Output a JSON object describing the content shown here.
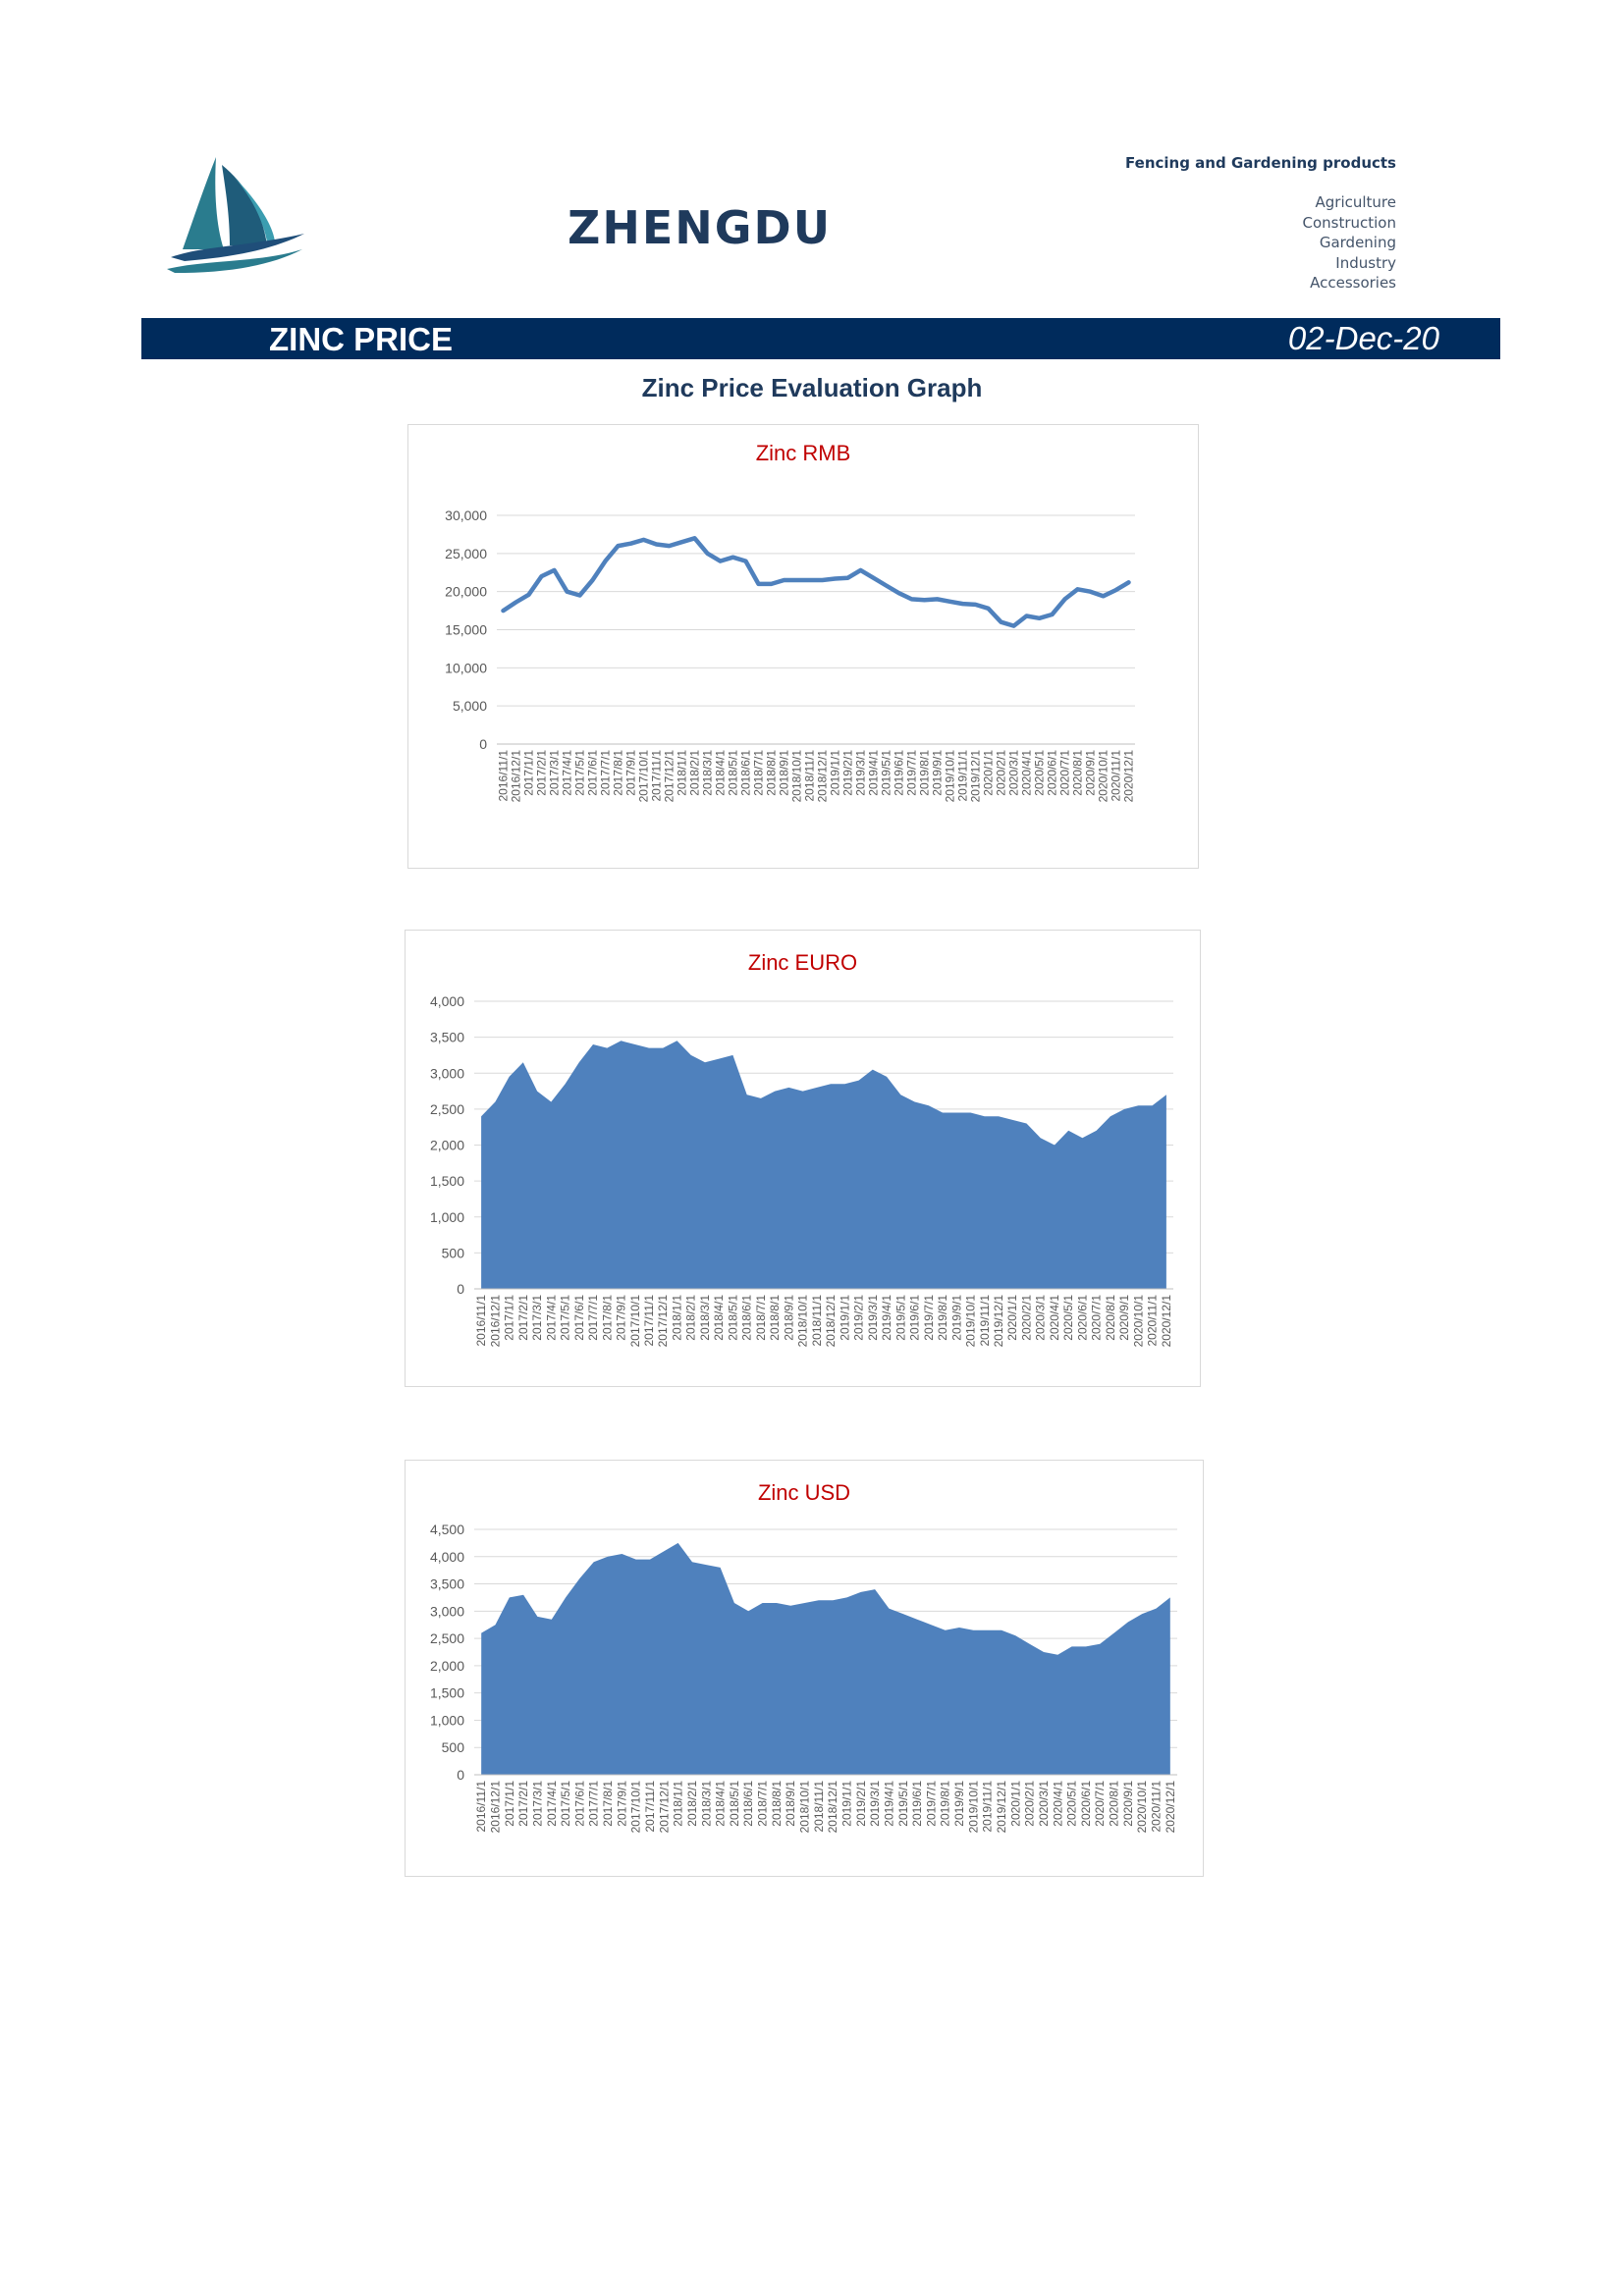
{
  "header": {
    "company": "ZHENGDU",
    "tagline": "Fencing and Gardening products",
    "categories": [
      "Agriculture",
      "Construction",
      "Gardening",
      "Industry",
      "Accessories"
    ]
  },
  "banner": {
    "title": "ZINC PRICE",
    "date": "02-Dec-20"
  },
  "graph_heading": "Zinc Price Evaluation Graph",
  "colors": {
    "navy": "#002b5c",
    "series": "#4f81bd",
    "chart_title": "#c00000"
  },
  "chart_data": [
    {
      "type": "line",
      "title": "Zinc RMB",
      "ylim": [
        0,
        30000
      ],
      "yticks": [
        0,
        5000,
        10000,
        15000,
        20000,
        25000,
        30000
      ],
      "ytick_labels": [
        "0",
        "5,000",
        "10,000",
        "15,000",
        "20,000",
        "25,000",
        "30,000"
      ],
      "categories": [
        "2016/11/1",
        "2016/12/1",
        "2017/1/1",
        "2017/2/1",
        "2017/3/1",
        "2017/4/1",
        "2017/5/1",
        "2017/6/1",
        "2017/7/1",
        "2017/8/1",
        "2017/9/1",
        "2017/10/1",
        "2017/11/1",
        "2017/12/1",
        "2018/1/1",
        "2018/2/1",
        "2018/3/1",
        "2018/4/1",
        "2018/5/1",
        "2018/6/1",
        "2018/7/1",
        "2018/8/1",
        "2018/9/1",
        "2018/10/1",
        "2018/11/1",
        "2018/12/1",
        "2019/1/1",
        "2019/2/1",
        "2019/3/1",
        "2019/4/1",
        "2019/5/1",
        "2019/6/1",
        "2019/7/1",
        "2019/8/1",
        "2019/9/1",
        "2019/10/1",
        "2019/11/1",
        "2019/12/1",
        "2020/1/1",
        "2020/2/1",
        "2020/3/1",
        "2020/4/1",
        "2020/5/1",
        "2020/6/1",
        "2020/7/1",
        "2020/8/1",
        "2020/9/1",
        "2020/10/1",
        "2020/11/1",
        "2020/12/1"
      ],
      "values": [
        17500,
        18600,
        19600,
        22000,
        22800,
        20000,
        19500,
        21500,
        24000,
        26000,
        26300,
        26800,
        26200,
        26000,
        26500,
        27000,
        25000,
        24000,
        24500,
        24000,
        21000,
        21000,
        21500,
        21500,
        21500,
        21500,
        21700,
        21800,
        22800,
        21800,
        20800,
        19800,
        19000,
        18900,
        19000,
        18700,
        18400,
        18300,
        17800,
        16000,
        15500,
        16800,
        16500,
        17000,
        19000,
        20300,
        20000,
        19400,
        20200,
        21200
      ],
      "series_name": "",
      "xlabel": "",
      "ylabel": ""
    },
    {
      "type": "area",
      "title": "Zinc EURO",
      "ylim": [
        0,
        4000
      ],
      "yticks": [
        0,
        500,
        1000,
        1500,
        2000,
        2500,
        3000,
        3500,
        4000
      ],
      "ytick_labels": [
        "0",
        "500",
        "1,000",
        "1,500",
        "2,000",
        "2,500",
        "3,000",
        "3,500",
        "4,000"
      ],
      "categories": [
        "2016/11/1",
        "2016/12/1",
        "2017/1/1",
        "2017/2/1",
        "2017/3/1",
        "2017/4/1",
        "2017/5/1",
        "2017/6/1",
        "2017/7/1",
        "2017/8/1",
        "2017/9/1",
        "2017/10/1",
        "2017/11/1",
        "2017/12/1",
        "2018/1/1",
        "2018/2/1",
        "2018/3/1",
        "2018/4/1",
        "2018/5/1",
        "2018/6/1",
        "2018/7/1",
        "2018/8/1",
        "2018/9/1",
        "2018/10/1",
        "2018/11/1",
        "2018/12/1",
        "2019/1/1",
        "2019/2/1",
        "2019/3/1",
        "2019/4/1",
        "2019/5/1",
        "2019/6/1",
        "2019/7/1",
        "2019/8/1",
        "2019/9/1",
        "2019/10/1",
        "2019/11/1",
        "2019/12/1",
        "2020/1/1",
        "2020/2/1",
        "2020/3/1",
        "2020/4/1",
        "2020/5/1",
        "2020/6/1",
        "2020/7/1",
        "2020/8/1",
        "2020/9/1",
        "2020/10/1",
        "2020/11/1",
        "2020/12/1"
      ],
      "values": [
        2400,
        2600,
        2950,
        3150,
        2750,
        2600,
        2850,
        3150,
        3400,
        3350,
        3450,
        3400,
        3350,
        3350,
        3450,
        3250,
        3150,
        3200,
        3250,
        2700,
        2650,
        2750,
        2800,
        2750,
        2800,
        2850,
        2850,
        2900,
        3050,
        2950,
        2700,
        2600,
        2550,
        2450,
        2450,
        2450,
        2400,
        2400,
        2350,
        2300,
        2100,
        2000,
        2200,
        2100,
        2200,
        2400,
        2500,
        2550,
        2550,
        2700
      ],
      "series_name": "",
      "xlabel": "",
      "ylabel": ""
    },
    {
      "type": "area",
      "title": "Zinc USD",
      "ylim": [
        0,
        4500
      ],
      "yticks": [
        0,
        500,
        1000,
        1500,
        2000,
        2500,
        3000,
        3500,
        4000,
        4500
      ],
      "ytick_labels": [
        "0",
        "500",
        "1,000",
        "1,500",
        "2,000",
        "2,500",
        "3,000",
        "3,500",
        "4,000",
        "4,500"
      ],
      "categories": [
        "2016/11/1",
        "2016/12/1",
        "2017/1/1",
        "2017/2/1",
        "2017/3/1",
        "2017/4/1",
        "2017/5/1",
        "2017/6/1",
        "2017/7/1",
        "2017/8/1",
        "2017/9/1",
        "2017/10/1",
        "2017/11/1",
        "2017/12/1",
        "2018/1/1",
        "2018/2/1",
        "2018/3/1",
        "2018/4/1",
        "2018/5/1",
        "2018/6/1",
        "2018/7/1",
        "2018/8/1",
        "2018/9/1",
        "2018/10/1",
        "2018/11/1",
        "2018/12/1",
        "2019/1/1",
        "2019/2/1",
        "2019/3/1",
        "2019/4/1",
        "2019/5/1",
        "2019/6/1",
        "2019/7/1",
        "2019/8/1",
        "2019/9/1",
        "2019/10/1",
        "2019/11/1",
        "2019/12/1",
        "2020/1/1",
        "2020/2/1",
        "2020/3/1",
        "2020/4/1",
        "2020/5/1",
        "2020/6/1",
        "2020/7/1",
        "2020/8/1",
        "2020/9/1",
        "2020/10/1",
        "2020/11/1",
        "2020/12/1"
      ],
      "values": [
        2600,
        2750,
        3250,
        3300,
        2900,
        2850,
        3250,
        3600,
        3900,
        4000,
        4050,
        3950,
        3950,
        4100,
        4250,
        3900,
        3850,
        3800,
        3150,
        3000,
        3150,
        3150,
        3100,
        3150,
        3200,
        3200,
        3250,
        3350,
        3400,
        3050,
        2950,
        2850,
        2750,
        2650,
        2700,
        2650,
        2650,
        2650,
        2550,
        2400,
        2250,
        2200,
        2350,
        2350,
        2400,
        2600,
        2800,
        2950,
        3050,
        3250
      ],
      "series_name": "",
      "xlabel": "",
      "ylabel": ""
    }
  ]
}
